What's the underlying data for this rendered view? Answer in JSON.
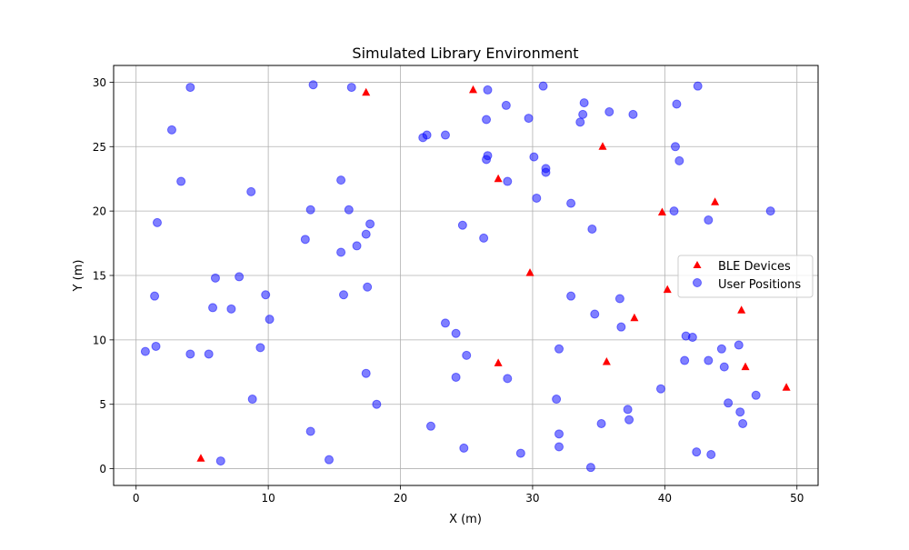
{
  "chart_data": {
    "type": "scatter",
    "title": "Simulated Library Environment",
    "xlabel": "X (m)",
    "ylabel": "Y (m)",
    "xlim": [
      -1.7,
      51.6
    ],
    "ylim": [
      -1.3,
      31.3
    ],
    "xticks": [
      0,
      10,
      20,
      30,
      40,
      50
    ],
    "yticks": [
      0,
      5,
      10,
      15,
      20,
      25,
      30
    ],
    "grid": true,
    "legend_position": "center-right",
    "series": [
      {
        "name": "BLE Devices",
        "marker": "triangle",
        "color": "#ff0000",
        "points": [
          [
            17.4,
            29.2
          ],
          [
            25.5,
            29.4
          ],
          [
            35.3,
            25.0
          ],
          [
            27.4,
            22.5
          ],
          [
            39.8,
            19.9
          ],
          [
            43.8,
            20.7
          ],
          [
            29.8,
            15.2
          ],
          [
            40.2,
            13.9
          ],
          [
            45.8,
            12.3
          ],
          [
            37.7,
            11.7
          ],
          [
            27.4,
            8.2
          ],
          [
            35.6,
            8.3
          ],
          [
            46.1,
            7.9
          ],
          [
            49.2,
            6.3
          ],
          [
            4.9,
            0.8
          ]
        ]
      },
      {
        "name": "User Positions",
        "marker": "circle",
        "color": "#0000ff",
        "points": [
          [
            4.1,
            29.6
          ],
          [
            13.4,
            29.8
          ],
          [
            16.3,
            29.6
          ],
          [
            2.7,
            26.3
          ],
          [
            3.4,
            22.3
          ],
          [
            8.7,
            21.5
          ],
          [
            1.6,
            19.1
          ],
          [
            13.2,
            20.1
          ],
          [
            15.5,
            22.4
          ],
          [
            16.1,
            20.1
          ],
          [
            17.7,
            19.0
          ],
          [
            17.4,
            18.2
          ],
          [
            12.8,
            17.8
          ],
          [
            16.7,
            17.3
          ],
          [
            15.5,
            16.8
          ],
          [
            6.0,
            14.8
          ],
          [
            7.8,
            14.9
          ],
          [
            1.4,
            13.4
          ],
          [
            9.8,
            13.5
          ],
          [
            15.7,
            13.5
          ],
          [
            17.5,
            14.1
          ],
          [
            5.8,
            12.5
          ],
          [
            7.2,
            12.4
          ],
          [
            10.1,
            11.6
          ],
          [
            0.7,
            9.1
          ],
          [
            1.5,
            9.5
          ],
          [
            4.1,
            8.9
          ],
          [
            5.5,
            8.9
          ],
          [
            9.4,
            9.4
          ],
          [
            17.4,
            7.4
          ],
          [
            8.8,
            5.4
          ],
          [
            18.2,
            5.0
          ],
          [
            13.2,
            2.9
          ],
          [
            14.6,
            0.7
          ],
          [
            6.4,
            0.6
          ],
          [
            21.7,
            25.7
          ],
          [
            22.0,
            25.9
          ],
          [
            23.4,
            25.9
          ],
          [
            26.6,
            29.4
          ],
          [
            28.0,
            28.2
          ],
          [
            26.5,
            27.1
          ],
          [
            29.7,
            27.2
          ],
          [
            30.8,
            29.7
          ],
          [
            26.5,
            24.0
          ],
          [
            26.6,
            24.3
          ],
          [
            30.1,
            24.2
          ],
          [
            31.0,
            23.3
          ],
          [
            31.0,
            23.0
          ],
          [
            28.1,
            22.3
          ],
          [
            30.3,
            21.0
          ],
          [
            24.7,
            18.9
          ],
          [
            26.3,
            17.9
          ],
          [
            33.9,
            28.4
          ],
          [
            33.8,
            27.5
          ],
          [
            33.6,
            26.9
          ],
          [
            35.8,
            27.7
          ],
          [
            37.6,
            27.5
          ],
          [
            40.9,
            28.3
          ],
          [
            42.5,
            29.7
          ],
          [
            40.8,
            25.0
          ],
          [
            41.1,
            23.9
          ],
          [
            32.9,
            20.6
          ],
          [
            34.5,
            18.6
          ],
          [
            40.7,
            20.0
          ],
          [
            43.3,
            19.3
          ],
          [
            48.0,
            20.0
          ],
          [
            32.9,
            13.4
          ],
          [
            36.6,
            13.2
          ],
          [
            34.7,
            12.0
          ],
          [
            36.7,
            11.0
          ],
          [
            23.4,
            11.3
          ],
          [
            24.2,
            10.5
          ],
          [
            25.0,
            8.8
          ],
          [
            24.2,
            7.1
          ],
          [
            28.1,
            7.0
          ],
          [
            32.0,
            9.3
          ],
          [
            41.6,
            10.3
          ],
          [
            42.1,
            10.2
          ],
          [
            45.6,
            9.6
          ],
          [
            44.3,
            9.3
          ],
          [
            41.5,
            8.4
          ],
          [
            43.3,
            8.4
          ],
          [
            44.5,
            7.9
          ],
          [
            39.7,
            6.2
          ],
          [
            46.9,
            5.7
          ],
          [
            44.8,
            5.1
          ],
          [
            31.8,
            5.4
          ],
          [
            37.2,
            4.6
          ],
          [
            45.7,
            4.4
          ],
          [
            37.3,
            3.8
          ],
          [
            35.2,
            3.5
          ],
          [
            45.9,
            3.5
          ],
          [
            22.3,
            3.3
          ],
          [
            32.0,
            2.7
          ],
          [
            24.8,
            1.6
          ],
          [
            32.0,
            1.7
          ],
          [
            29.1,
            1.2
          ],
          [
            42.4,
            1.3
          ],
          [
            43.5,
            1.1
          ],
          [
            34.4,
            0.1
          ]
        ]
      }
    ]
  }
}
